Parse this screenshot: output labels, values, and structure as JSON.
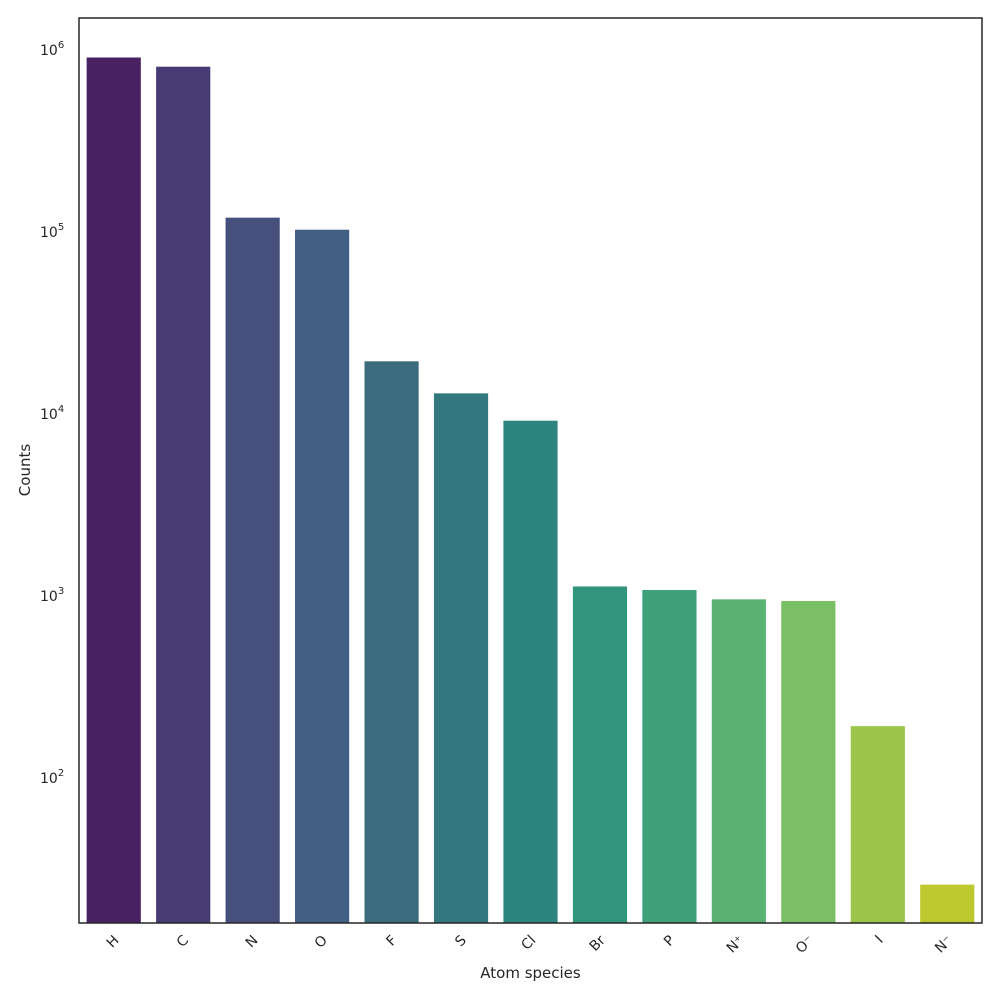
{
  "chart_data": {
    "type": "bar",
    "xlabel": "Atom species",
    "ylabel": "Counts",
    "y_scale": "log",
    "ylim": [
      16,
      1500000
    ],
    "categories": [
      "H",
      "C",
      "N",
      "O",
      "F",
      "S",
      "Cl",
      "Br",
      "P",
      "N⁺",
      "O⁻",
      "I",
      "N⁻"
    ],
    "values": [
      910000,
      810000,
      120000,
      103000,
      19500,
      13000,
      9200,
      1130,
      1080,
      960,
      940,
      193,
      26
    ],
    "colors": [
      "#482163",
      "#483a75",
      "#47507d",
      "#415f83",
      "#3b6c7e",
      "#34787f",
      "#2e847e",
      "#31957d",
      "#3ea17a",
      "#5ab273",
      "#7bbf64",
      "#9bc64b",
      "#bec82f"
    ],
    "y_ticks": [
      {
        "base": "10",
        "exp": "2",
        "value": 100
      },
      {
        "base": "10",
        "exp": "3",
        "value": 1000
      },
      {
        "base": "10",
        "exp": "4",
        "value": 10000
      },
      {
        "base": "10",
        "exp": "5",
        "value": 100000
      },
      {
        "base": "10",
        "exp": "6",
        "value": 1000000
      }
    ],
    "grid": false,
    "legend": "none"
  }
}
